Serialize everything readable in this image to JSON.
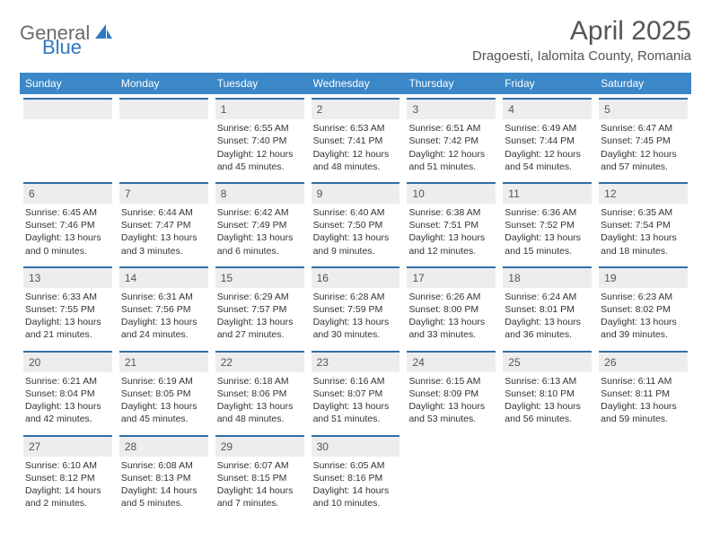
{
  "logo": {
    "general": "General",
    "blue": "Blue"
  },
  "header": {
    "month_title": "April 2025",
    "location": "Dragoesti, Ialomita County, Romania"
  },
  "weekdays": [
    "Sunday",
    "Monday",
    "Tuesday",
    "Wednesday",
    "Thursday",
    "Friday",
    "Saturday"
  ],
  "colors": {
    "header_bar": "#3b87c8",
    "day_rule": "#2f6fa8",
    "day_num_bg": "#ededed"
  },
  "weeks": [
    [
      {
        "empty": true
      },
      {
        "empty": true
      },
      {
        "num": "1",
        "sunrise": "Sunrise: 6:55 AM",
        "sunset": "Sunset: 7:40 PM",
        "day1": "Daylight: 12 hours",
        "day2": "and 45 minutes."
      },
      {
        "num": "2",
        "sunrise": "Sunrise: 6:53 AM",
        "sunset": "Sunset: 7:41 PM",
        "day1": "Daylight: 12 hours",
        "day2": "and 48 minutes."
      },
      {
        "num": "3",
        "sunrise": "Sunrise: 6:51 AM",
        "sunset": "Sunset: 7:42 PM",
        "day1": "Daylight: 12 hours",
        "day2": "and 51 minutes."
      },
      {
        "num": "4",
        "sunrise": "Sunrise: 6:49 AM",
        "sunset": "Sunset: 7:44 PM",
        "day1": "Daylight: 12 hours",
        "day2": "and 54 minutes."
      },
      {
        "num": "5",
        "sunrise": "Sunrise: 6:47 AM",
        "sunset": "Sunset: 7:45 PM",
        "day1": "Daylight: 12 hours",
        "day2": "and 57 minutes."
      }
    ],
    [
      {
        "num": "6",
        "sunrise": "Sunrise: 6:45 AM",
        "sunset": "Sunset: 7:46 PM",
        "day1": "Daylight: 13 hours",
        "day2": "and 0 minutes."
      },
      {
        "num": "7",
        "sunrise": "Sunrise: 6:44 AM",
        "sunset": "Sunset: 7:47 PM",
        "day1": "Daylight: 13 hours",
        "day2": "and 3 minutes."
      },
      {
        "num": "8",
        "sunrise": "Sunrise: 6:42 AM",
        "sunset": "Sunset: 7:49 PM",
        "day1": "Daylight: 13 hours",
        "day2": "and 6 minutes."
      },
      {
        "num": "9",
        "sunrise": "Sunrise: 6:40 AM",
        "sunset": "Sunset: 7:50 PM",
        "day1": "Daylight: 13 hours",
        "day2": "and 9 minutes."
      },
      {
        "num": "10",
        "sunrise": "Sunrise: 6:38 AM",
        "sunset": "Sunset: 7:51 PM",
        "day1": "Daylight: 13 hours",
        "day2": "and 12 minutes."
      },
      {
        "num": "11",
        "sunrise": "Sunrise: 6:36 AM",
        "sunset": "Sunset: 7:52 PM",
        "day1": "Daylight: 13 hours",
        "day2": "and 15 minutes."
      },
      {
        "num": "12",
        "sunrise": "Sunrise: 6:35 AM",
        "sunset": "Sunset: 7:54 PM",
        "day1": "Daylight: 13 hours",
        "day2": "and 18 minutes."
      }
    ],
    [
      {
        "num": "13",
        "sunrise": "Sunrise: 6:33 AM",
        "sunset": "Sunset: 7:55 PM",
        "day1": "Daylight: 13 hours",
        "day2": "and 21 minutes."
      },
      {
        "num": "14",
        "sunrise": "Sunrise: 6:31 AM",
        "sunset": "Sunset: 7:56 PM",
        "day1": "Daylight: 13 hours",
        "day2": "and 24 minutes."
      },
      {
        "num": "15",
        "sunrise": "Sunrise: 6:29 AM",
        "sunset": "Sunset: 7:57 PM",
        "day1": "Daylight: 13 hours",
        "day2": "and 27 minutes."
      },
      {
        "num": "16",
        "sunrise": "Sunrise: 6:28 AM",
        "sunset": "Sunset: 7:59 PM",
        "day1": "Daylight: 13 hours",
        "day2": "and 30 minutes."
      },
      {
        "num": "17",
        "sunrise": "Sunrise: 6:26 AM",
        "sunset": "Sunset: 8:00 PM",
        "day1": "Daylight: 13 hours",
        "day2": "and 33 minutes."
      },
      {
        "num": "18",
        "sunrise": "Sunrise: 6:24 AM",
        "sunset": "Sunset: 8:01 PM",
        "day1": "Daylight: 13 hours",
        "day2": "and 36 minutes."
      },
      {
        "num": "19",
        "sunrise": "Sunrise: 6:23 AM",
        "sunset": "Sunset: 8:02 PM",
        "day1": "Daylight: 13 hours",
        "day2": "and 39 minutes."
      }
    ],
    [
      {
        "num": "20",
        "sunrise": "Sunrise: 6:21 AM",
        "sunset": "Sunset: 8:04 PM",
        "day1": "Daylight: 13 hours",
        "day2": "and 42 minutes."
      },
      {
        "num": "21",
        "sunrise": "Sunrise: 6:19 AM",
        "sunset": "Sunset: 8:05 PM",
        "day1": "Daylight: 13 hours",
        "day2": "and 45 minutes."
      },
      {
        "num": "22",
        "sunrise": "Sunrise: 6:18 AM",
        "sunset": "Sunset: 8:06 PM",
        "day1": "Daylight: 13 hours",
        "day2": "and 48 minutes."
      },
      {
        "num": "23",
        "sunrise": "Sunrise: 6:16 AM",
        "sunset": "Sunset: 8:07 PM",
        "day1": "Daylight: 13 hours",
        "day2": "and 51 minutes."
      },
      {
        "num": "24",
        "sunrise": "Sunrise: 6:15 AM",
        "sunset": "Sunset: 8:09 PM",
        "day1": "Daylight: 13 hours",
        "day2": "and 53 minutes."
      },
      {
        "num": "25",
        "sunrise": "Sunrise: 6:13 AM",
        "sunset": "Sunset: 8:10 PM",
        "day1": "Daylight: 13 hours",
        "day2": "and 56 minutes."
      },
      {
        "num": "26",
        "sunrise": "Sunrise: 6:11 AM",
        "sunset": "Sunset: 8:11 PM",
        "day1": "Daylight: 13 hours",
        "day2": "and 59 minutes."
      }
    ],
    [
      {
        "num": "27",
        "sunrise": "Sunrise: 6:10 AM",
        "sunset": "Sunset: 8:12 PM",
        "day1": "Daylight: 14 hours",
        "day2": "and 2 minutes."
      },
      {
        "num": "28",
        "sunrise": "Sunrise: 6:08 AM",
        "sunset": "Sunset: 8:13 PM",
        "day1": "Daylight: 14 hours",
        "day2": "and 5 minutes."
      },
      {
        "num": "29",
        "sunrise": "Sunrise: 6:07 AM",
        "sunset": "Sunset: 8:15 PM",
        "day1": "Daylight: 14 hours",
        "day2": "and 7 minutes."
      },
      {
        "num": "30",
        "sunrise": "Sunrise: 6:05 AM",
        "sunset": "Sunset: 8:16 PM",
        "day1": "Daylight: 14 hours",
        "day2": "and 10 minutes."
      },
      {
        "blank": true
      },
      {
        "blank": true
      },
      {
        "blank": true
      }
    ]
  ]
}
